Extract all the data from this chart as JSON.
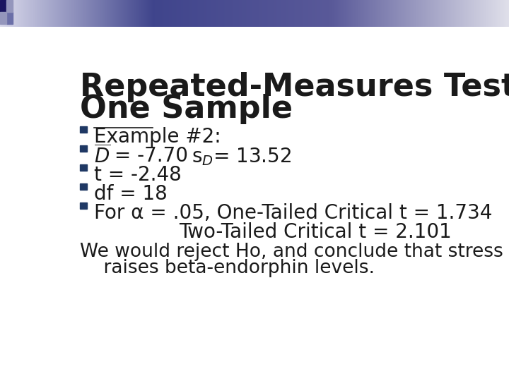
{
  "title_line1": "Repeated-Measures Testing with",
  "title_line2": "One Sample",
  "title_fontsize": 32,
  "title_color": "#1a1a1a",
  "bullet_color": "#1f3864",
  "body_fontsize": 20,
  "body_color": "#1a1a1a",
  "background_color": "#ffffff",
  "paragraph_line1": "We would reject Ho, and conclude that stress",
  "paragraph_line2": "    raises beta-endorphin levels."
}
